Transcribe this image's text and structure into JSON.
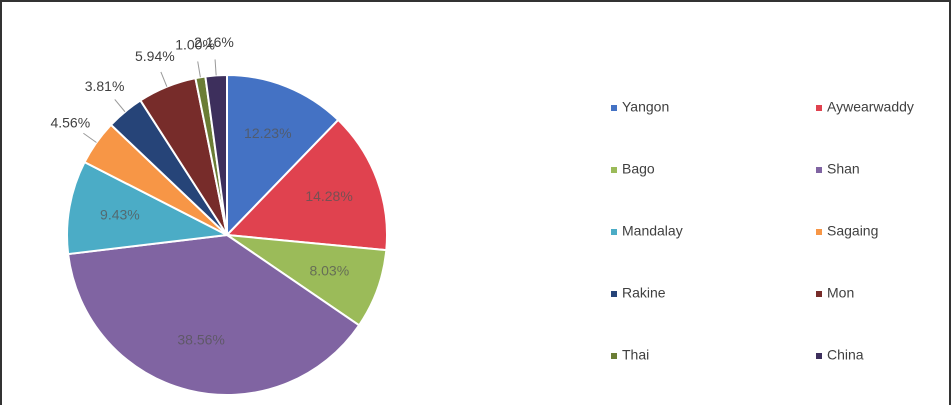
{
  "chart_data": {
    "type": "pie",
    "categories": [
      "Yangon",
      "Aywearwaddy",
      "Bago",
      "Shan",
      "Mandalay",
      "Sagaing",
      "Rakine",
      "Mon",
      "Thai",
      "China"
    ],
    "values": [
      12.23,
      14.28,
      8.03,
      38.56,
      9.43,
      4.56,
      3.81,
      5.94,
      1.0,
      2.16
    ],
    "value_labels": [
      "12.23%",
      "14.28%",
      "8.03%",
      "38.56%",
      "9.43%",
      "4.56%",
      "3.81%",
      "5.94%",
      "1.00%",
      "2.16%"
    ],
    "colors": [
      "#4472c4",
      "#e0424f",
      "#9bbb59",
      "#8064a2",
      "#4bacc6",
      "#f79646",
      "#264478",
      "#772c2a",
      "#6b7d35",
      "#3d2f5c"
    ],
    "legend": "right"
  }
}
